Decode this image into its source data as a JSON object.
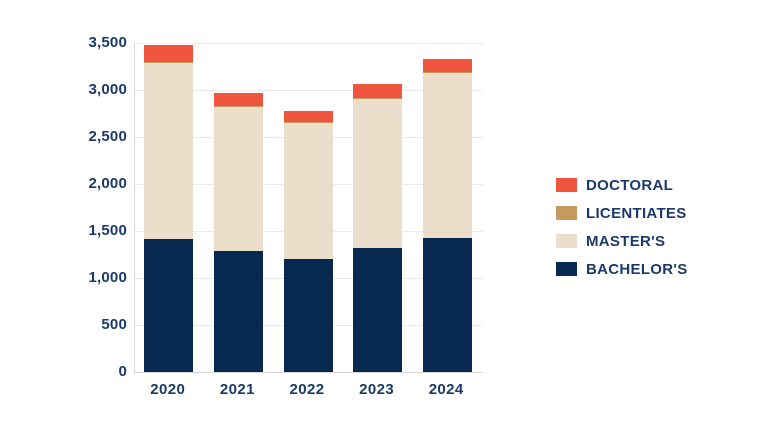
{
  "page": {
    "background_color": "#ffffff",
    "text_color": "#1c3a69",
    "gridline_color": "#eaeaea",
    "axis_line_color": "#d8d8d8"
  },
  "chart_data": {
    "type": "bar",
    "stacked": true,
    "title": "",
    "xlabel": "",
    "ylabel": "",
    "categories": [
      "2020",
      "2021",
      "2022",
      "2023",
      "2024"
    ],
    "series": [
      {
        "name": "BACHELOR'S",
        "color": "#07294f",
        "values": [
          1420,
          1285,
          1205,
          1315,
          1425
        ]
      },
      {
        "name": "MASTER'S",
        "color": "#ebdfcb",
        "values": [
          1870,
          1540,
          1445,
          1590,
          1765
        ]
      },
      {
        "name": "LICENTIATES",
        "color": "#c49a5e",
        "values": [
          5,
          5,
          5,
          5,
          5
        ]
      },
      {
        "name": "DOCTORAL",
        "color": "#f0553f",
        "values": [
          185,
          135,
          125,
          155,
          135
        ]
      }
    ],
    "totals": [
      3480,
      2965,
      2780,
      3065,
      3330
    ],
    "ylim": [
      0,
      3500
    ],
    "y_tick_interval": 500,
    "y_tick_labels": [
      "0",
      "500",
      "1,000",
      "1,500",
      "2,000",
      "2,500",
      "3,000",
      "3,500"
    ],
    "grid": true,
    "legend_position": "right",
    "legend_order": [
      "DOCTORAL",
      "LICENTIATES",
      "MASTER'S",
      "BACHELOR'S"
    ]
  }
}
